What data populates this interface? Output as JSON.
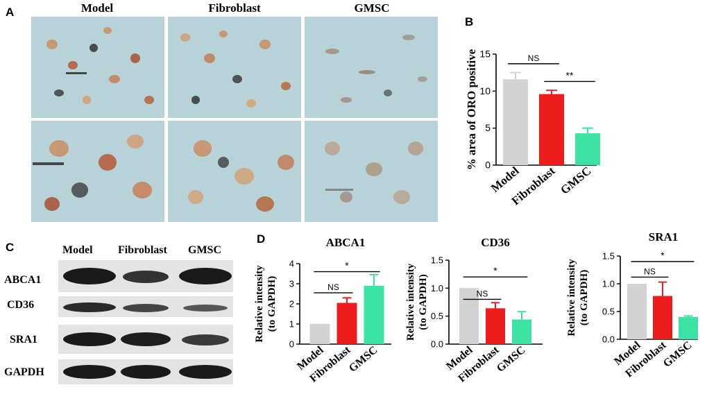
{
  "panels": {
    "A": "A",
    "B": "B",
    "C": "C",
    "D": "D"
  },
  "microscopy": {
    "columns": [
      "Model",
      "Fibroblast",
      "GMSC"
    ],
    "rows": 2
  },
  "western_blot": {
    "columns": [
      "Model",
      "Fibroblast",
      "GMSC"
    ],
    "rows": [
      "ABCA1",
      "CD36",
      "SRA1",
      "GAPDH"
    ]
  },
  "colors": {
    "model": "#d3d3d3",
    "fibroblast": "#ee1c1c",
    "gmsc": "#3de3a5",
    "micro_bg": "#b7d3d8",
    "blot_bg": "#e4e4e4",
    "band": "#1a1a1a"
  },
  "chart_data": [
    {
      "id": "B",
      "type": "bar",
      "title": "",
      "ylabel": "% area of ORO positive",
      "xlabel": "",
      "categories": [
        "Model",
        "Fibroblast",
        "GMSC"
      ],
      "values": [
        11.6,
        9.6,
        4.3
      ],
      "errors": [
        0.9,
        0.5,
        0.7
      ],
      "ylim": [
        0,
        15
      ],
      "yticks": [
        "0",
        "5",
        "10",
        "15"
      ],
      "significance": [
        {
          "from": 0,
          "to": 1,
          "label": "NS"
        },
        {
          "from": 1,
          "to": 2,
          "label": "**"
        }
      ]
    },
    {
      "id": "D1",
      "type": "bar",
      "title": "ABCA1",
      "ylabel": "Relative intensity",
      "ylabel2": "(to GAPDH)",
      "xlabel": "",
      "categories": [
        "Model",
        "Fibroblast",
        "GMSC"
      ],
      "values": [
        1.0,
        2.05,
        2.9
      ],
      "errors": [
        0,
        0.25,
        0.55
      ],
      "ylim": [
        0,
        4
      ],
      "yticks": [
        "0",
        "1",
        "2",
        "3",
        "4"
      ],
      "significance": [
        {
          "from": 0,
          "to": 1,
          "label": "NS",
          "level": 2.55
        },
        {
          "from": 0,
          "to": 2,
          "label": "*",
          "level": 3.6
        }
      ]
    },
    {
      "id": "D2",
      "type": "bar",
      "title": "CD36",
      "ylabel": "Relative intensity",
      "ylabel2": "(to GAPDH)",
      "xlabel": "",
      "categories": [
        "Model",
        "Fibroblast",
        "GMSC"
      ],
      "values": [
        1.0,
        0.64,
        0.44
      ],
      "errors": [
        0,
        0.1,
        0.14
      ],
      "ylim": [
        0,
        1.5
      ],
      "yticks": [
        "0.0",
        "0.5",
        "1.0",
        "1.5"
      ],
      "significance": [
        {
          "from": 0,
          "to": 1,
          "label": "NS",
          "level": 0.8
        },
        {
          "from": 0,
          "to": 2,
          "label": "*",
          "level": 1.2
        }
      ]
    },
    {
      "id": "D3",
      "type": "bar",
      "title": "SRA1",
      "ylabel": "Relative intensity",
      "ylabel2": "(to GAPDH)",
      "xlabel": "",
      "categories": [
        "Model",
        "Fibroblast",
        "GMSC"
      ],
      "values": [
        1.0,
        0.78,
        0.4
      ],
      "errors": [
        0,
        0.25,
        0.02
      ],
      "ylim": [
        0,
        1.5
      ],
      "yticks": [
        "0.0",
        "0.5",
        "1.0",
        "1.5"
      ],
      "significance": [
        {
          "from": 0,
          "to": 1,
          "label": "NS",
          "level": 1.12
        },
        {
          "from": 0,
          "to": 2,
          "label": "*",
          "level": 1.4
        }
      ]
    }
  ]
}
